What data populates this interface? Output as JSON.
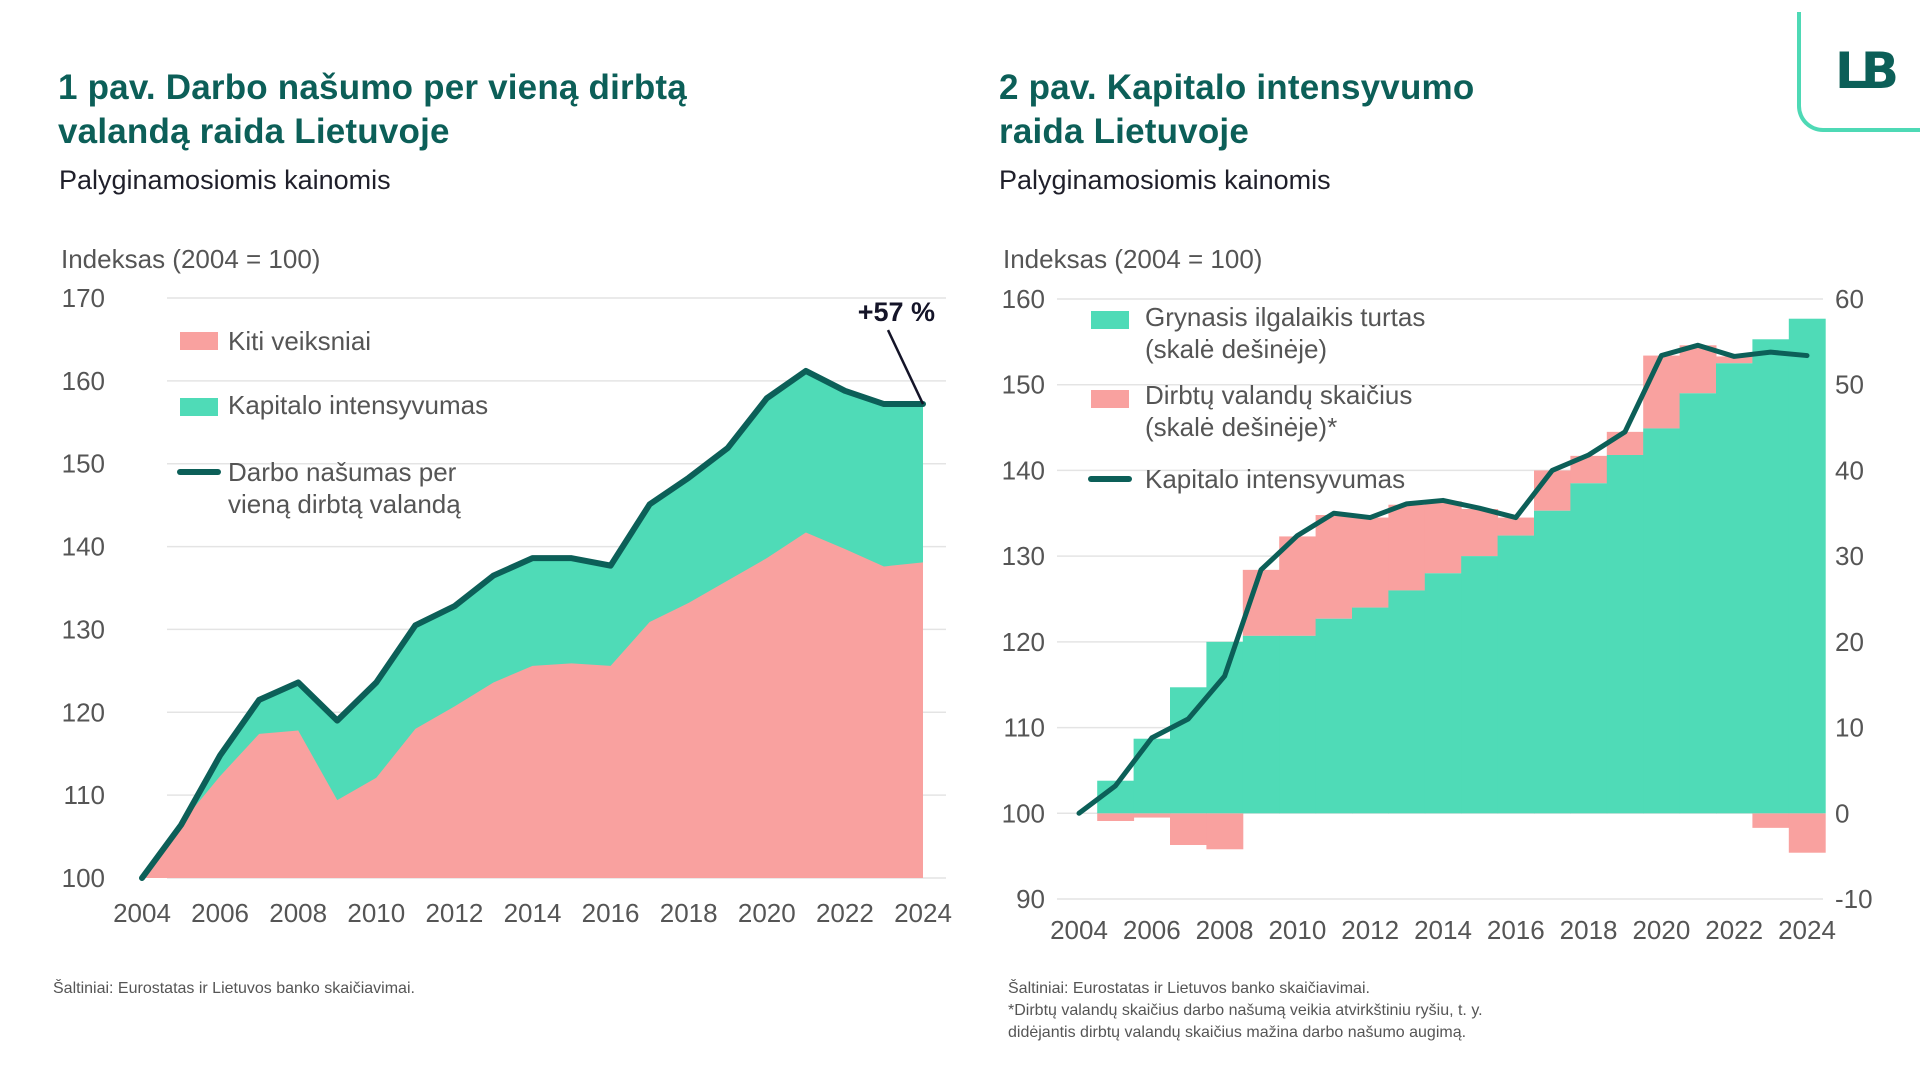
{
  "logo": {
    "text": "LB",
    "icon": "lietuvos-bankas-logo"
  },
  "colors": {
    "title": "#0c5f58",
    "green_area": "#4fdbb7",
    "pink_area": "#f9a19f",
    "line": "#0c5f58",
    "annotation": "#141428",
    "grid": "#e4e4e4",
    "logo_border": "#4ed9b5"
  },
  "left": {
    "title_line1": "1 pav. Darbo našumo per vieną dirbtą",
    "title_line2": "valandą raida Lietuvoje",
    "subtitle": "Palyginamosiomis kainomis",
    "axis_unit": "Indeksas (2004 = 100)",
    "footnote": "Šaltiniai: Eurostatas ir Lietuvos banko skaičiavimai."
  },
  "right": {
    "title_line1": "2 pav. Kapitalo intensyvumo",
    "title_line2": "raida Lietuvoje",
    "subtitle": "Palyginamosiomis kainomis",
    "axis_unit": "Indeksas (2004 = 100)",
    "footnote_lines": [
      "Šaltiniai: Eurostatas ir Lietuvos banko skaičiavimai.",
      "*Dirbtų valandų skaičius darbo našumą veikia atvirkštiniu ryšiu, t. y.",
      "didėjantis dirbtų valandų skaičius mažina darbo našumo augimą."
    ]
  },
  "chart_data": [
    {
      "type": "area",
      "title": "1 pav. Darbo našumo per vieną dirbtą valandą raida Lietuvoje",
      "subtitle": "Palyginamosiomis kainomis",
      "ylabel": "Indeksas (2004 = 100)",
      "xlabel": "",
      "ylim": [
        100,
        170
      ],
      "yticks": [
        100,
        110,
        120,
        130,
        140,
        150,
        160,
        170
      ],
      "xticks": [
        2004,
        2006,
        2008,
        2010,
        2012,
        2014,
        2016,
        2018,
        2020,
        2022,
        2024
      ],
      "grid": true,
      "legend_position": "top-left",
      "x": [
        2004,
        2005,
        2006,
        2007,
        2008,
        2009,
        2010,
        2011,
        2012,
        2013,
        2014,
        2015,
        2016,
        2017,
        2018,
        2019,
        2020,
        2021,
        2022,
        2023,
        2024
      ],
      "series": [
        {
          "name": "Kiti veiksniai",
          "kind": "area",
          "color": "#f9a19f",
          "values": [
            100,
            106.6,
            112.3,
            117.4,
            117.8,
            109.4,
            112.1,
            118.0,
            120.7,
            123.6,
            125.6,
            125.9,
            125.6,
            130.9,
            133.2,
            135.9,
            138.6,
            141.7,
            139.7,
            137.6,
            138.1
          ]
        },
        {
          "name": "Kapitalo intensyvumas",
          "kind": "area",
          "color": "#4fdbb7",
          "values": [
            100,
            106.4,
            114.8,
            121.5,
            123.6,
            119.0,
            123.6,
            130.5,
            132.8,
            136.5,
            138.6,
            138.6,
            137.7,
            145.1,
            148.3,
            151.9,
            157.9,
            161.2,
            158.8,
            157.2,
            157.2
          ]
        },
        {
          "name": "Darbo našumas per vieną dirbtą valandą",
          "kind": "line",
          "color": "#0c5f58",
          "values": [
            100,
            106.4,
            114.8,
            121.5,
            123.6,
            119.0,
            123.6,
            130.5,
            132.8,
            136.5,
            138.6,
            138.6,
            137.7,
            145.1,
            148.3,
            151.9,
            157.9,
            161.2,
            158.8,
            157.2,
            157.2
          ]
        }
      ],
      "legend": [
        "Kiti veiksniai",
        "Kapitalo intensyvumas",
        "Darbo našumas per",
        "vieną dirbtą valandą"
      ],
      "annotation": {
        "text": "+57 %",
        "x": 2024,
        "y": 157.2
      }
    },
    {
      "type": "bar",
      "title": "2 pav. Kapitalo intensyvumo raida Lietuvoje",
      "subtitle": "Palyginamosiomis kainomis",
      "ylabel": "Indeksas (2004 = 100)",
      "ylim": [
        90,
        160
      ],
      "yticks": [
        90,
        100,
        110,
        120,
        130,
        140,
        150,
        160
      ],
      "y2lim": [
        -10,
        60
      ],
      "y2ticks": [
        -10,
        0,
        10,
        20,
        30,
        40,
        50,
        60
      ],
      "xticks": [
        2004,
        2006,
        2008,
        2010,
        2012,
        2014,
        2016,
        2018,
        2020,
        2022,
        2024
      ],
      "grid": true,
      "legend_position": "top-left",
      "x": [
        2004,
        2005,
        2006,
        2007,
        2008,
        2009,
        2010,
        2011,
        2012,
        2013,
        2014,
        2015,
        2016,
        2017,
        2018,
        2019,
        2020,
        2021,
        2022,
        2023,
        2024
      ],
      "series": [
        {
          "name": "Grynasis ilgalaikis turtas (skalė dešinėje)",
          "kind": "bar",
          "axis": "right",
          "color": "#4fdbb7",
          "values": [
            null,
            3.8,
            8.7,
            14.7,
            20.0,
            20.7,
            20.7,
            22.7,
            24.0,
            26.0,
            28.0,
            30.0,
            32.4,
            35.3,
            38.5,
            41.8,
            44.9,
            49.0,
            52.5,
            55.3,
            57.7
          ]
        },
        {
          "name": "Dirbtų valandų skaičius (skalė dešinėje)*",
          "kind": "bar",
          "axis": "right",
          "color": "#f9a19f",
          "values": [
            null,
            -0.9,
            -0.5,
            -3.7,
            -4.2,
            7.7,
            11.6,
            12.1,
            10.5,
            10.0,
            8.4,
            5.5,
            2.1,
            4.7,
            3.2,
            2.7,
            8.5,
            5.6,
            0.8,
            -1.7,
            -4.6
          ]
        },
        {
          "name": "Kapitalo intensyvumas",
          "kind": "line",
          "axis": "left",
          "color": "#0c5f58",
          "values": [
            100,
            103.2,
            108.8,
            111.0,
            116.0,
            128.4,
            132.4,
            135.0,
            134.5,
            136.1,
            136.5,
            135.6,
            134.5,
            140.0,
            141.8,
            144.5,
            153.4,
            154.6,
            153.3,
            153.8,
            153.4
          ]
        }
      ],
      "legend": [
        "Grynasis ilgalaikis turtas",
        "(skalė dešinėje)",
        "Dirbtų valandų skaičius",
        "(skalė dešinėje)*",
        "Kapitalo intensyvumas"
      ]
    }
  ]
}
